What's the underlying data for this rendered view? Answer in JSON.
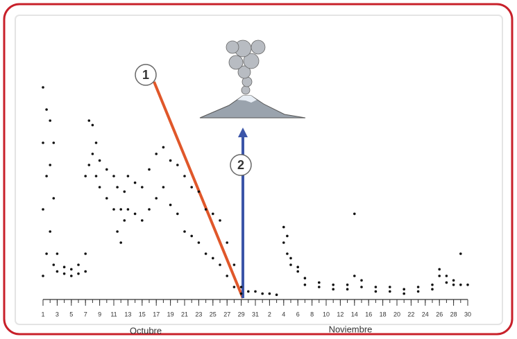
{
  "chart_data": {
    "type": "scatter",
    "x": [
      1,
      1,
      1,
      1,
      1.5,
      1.5,
      1.5,
      2,
      2,
      2,
      2.5,
      2.5,
      2.5,
      3,
      3,
      4,
      4,
      5,
      5,
      6,
      6,
      7,
      7,
      7,
      7.5,
      7.5,
      8,
      8,
      8.5,
      8.5,
      9,
      9,
      10,
      10,
      11,
      11,
      11.5,
      11.5,
      12,
      12,
      12.5,
      12.5,
      13,
      13,
      14,
      14,
      15,
      15,
      16,
      16,
      17,
      17,
      18,
      18,
      19,
      19,
      20,
      20,
      21,
      21,
      22,
      22,
      23,
      23,
      24,
      24,
      25,
      25,
      26,
      26,
      27,
      27,
      28,
      28,
      29,
      29,
      30,
      31,
      32,
      33,
      34,
      35,
      35,
      35.5,
      35.5,
      36,
      36,
      37,
      37,
      38,
      38,
      40,
      40,
      42,
      42,
      44,
      44,
      45,
      45,
      46,
      46,
      48,
      48,
      50,
      50,
      52,
      52,
      54,
      54,
      56,
      56,
      57,
      57,
      58,
      58,
      59,
      59,
      60,
      60,
      61
    ],
    "values": [
      10,
      40,
      70,
      95,
      20,
      55,
      85,
      30,
      60,
      80,
      15,
      45,
      70,
      12,
      20,
      11,
      14,
      10,
      13,
      11,
      15,
      12,
      20,
      55,
      60,
      80,
      65,
      78,
      55,
      70,
      50,
      62,
      45,
      58,
      40,
      55,
      30,
      50,
      25,
      40,
      35,
      48,
      40,
      55,
      38,
      52,
      35,
      50,
      40,
      58,
      45,
      65,
      50,
      68,
      42,
      62,
      38,
      60,
      30,
      55,
      28,
      50,
      25,
      48,
      20,
      40,
      18,
      38,
      15,
      35,
      10,
      25,
      5,
      15,
      2,
      5,
      3,
      3,
      2,
      2,
      1.5,
      25,
      32,
      20,
      28,
      15,
      18,
      12,
      14,
      6,
      9,
      5,
      7,
      4,
      6,
      4,
      6,
      10,
      38,
      5,
      8,
      3,
      5,
      3,
      5,
      2,
      4,
      3,
      5,
      4,
      6,
      10,
      13,
      7,
      10,
      6,
      8,
      6,
      20,
      6
    ],
    "color": "#111111",
    "xlim": [
      1,
      61
    ],
    "ylim": [
      0,
      100
    ],
    "xticks": [
      1,
      3,
      5,
      7,
      9,
      11,
      13,
      15,
      17,
      19,
      21,
      23,
      25,
      27,
      29,
      31,
      {
        "value": 33,
        "label": "2"
      },
      {
        "value": 35,
        "label": "4"
      },
      {
        "value": 37,
        "label": "6"
      },
      {
        "value": 39,
        "label": "8"
      },
      {
        "value": 41,
        "label": "10"
      },
      {
        "value": 43,
        "label": "12"
      },
      {
        "value": 45,
        "label": "14"
      },
      {
        "value": 47,
        "label": "16"
      },
      {
        "value": 49,
        "label": "18"
      },
      {
        "value": 51,
        "label": "20"
      },
      {
        "value": 53,
        "label": "22"
      },
      {
        "value": 55,
        "label": "24"
      },
      {
        "value": 57,
        "label": "26"
      },
      {
        "value": 59,
        "label": "28"
      },
      {
        "value": 61,
        "label": "30"
      }
    ],
    "minor_xticks": [
      1,
      2,
      3,
      4,
      5,
      6,
      7,
      8,
      9,
      10,
      11,
      12,
      13,
      14,
      15,
      16,
      17,
      18,
      19,
      20,
      21,
      22,
      23,
      24,
      25,
      26,
      27,
      28,
      29,
      30,
      31,
      32,
      33,
      34,
      35,
      36,
      37,
      38,
      39,
      40,
      41,
      42,
      43,
      44,
      45,
      46,
      47,
      48,
      49,
      50,
      51,
      52,
      53,
      54,
      55,
      56,
      57,
      58,
      59,
      60,
      61
    ],
    "month_labels": [
      "Octubre",
      "Noviembre"
    ],
    "annotations": [
      "1",
      "2"
    ]
  }
}
